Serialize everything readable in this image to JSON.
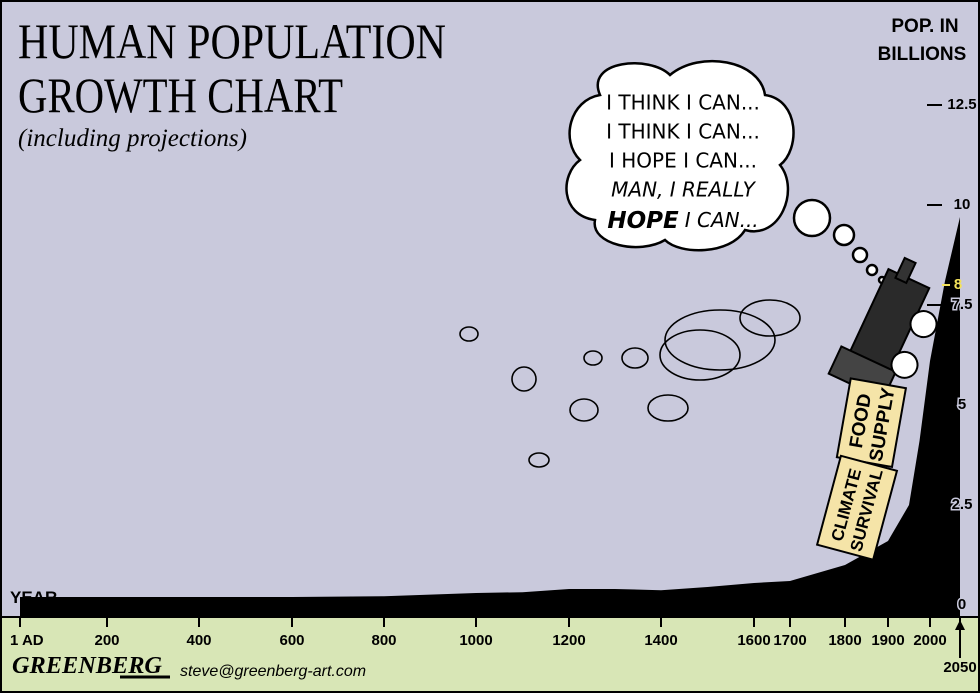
{
  "chart_data": {
    "type": "area",
    "title": [
      "HUMAN POPULATION",
      "GROWTH CHART"
    ],
    "subtitle": "(including projections)",
    "y_label": [
      "POP. IN",
      "BILLIONS"
    ],
    "x_label": "YEAR",
    "x": [
      1,
      200,
      400,
      600,
      800,
      1000,
      1100,
      1200,
      1300,
      1400,
      1500,
      1600,
      1700,
      1800,
      1850,
      1900,
      1950,
      1975,
      2000,
      2025,
      2050
    ],
    "values": [
      0.2,
      0.2,
      0.2,
      0.2,
      0.22,
      0.3,
      0.32,
      0.4,
      0.4,
      0.37,
      0.45,
      0.55,
      0.6,
      1.0,
      1.3,
      1.6,
      2.5,
      4.1,
      6.1,
      8.1,
      9.7
    ],
    "color": "#000000",
    "background": "#c9c9dc",
    "xlim": [
      1,
      2050
    ],
    "xticks": [
      {
        "value": 1,
        "label": "1 AD"
      },
      200,
      400,
      600,
      800,
      1000,
      1200,
      1400,
      1600,
      1700,
      1800,
      1900,
      2000,
      2050
    ],
    "ylim": [
      0,
      14.9
    ],
    "yticks": [
      0,
      2.5,
      5,
      7.5,
      10,
      12.5
    ],
    "highlight_ytick": 8,
    "highlight_color": "#f3e25a",
    "thought_bubble": {
      "lines": [
        "I THINK I CAN...",
        "I THINK I CAN...",
        "I HOPE I CAN...",
        "MAN, I REALLY"
      ],
      "last_line": [
        "HOPE",
        "I CAN..."
      ]
    },
    "train_cars": [
      [
        "FOOD",
        "SUPPLY"
      ],
      [
        "CLIMATE",
        "SURVIVAL"
      ]
    ],
    "signature": "GREENBERG",
    "email": "steve@greenberg-art.com"
  }
}
